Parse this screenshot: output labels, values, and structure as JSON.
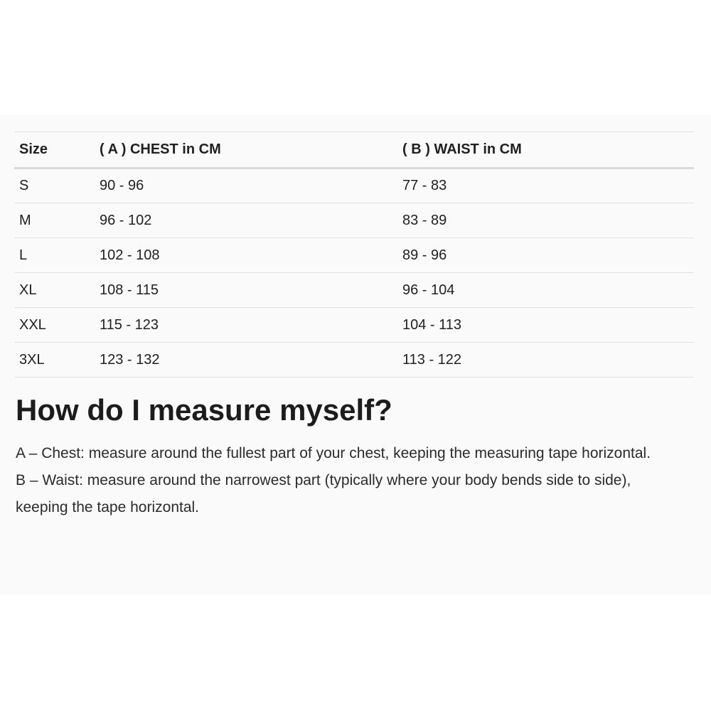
{
  "size_table": {
    "headers": [
      "Size",
      "( A ) CHEST in CM",
      "( B ) WAIST in CM"
    ],
    "rows": [
      {
        "size": "S",
        "chest": "90 - 96",
        "waist": "77 - 83"
      },
      {
        "size": "M",
        "chest": "96 - 102",
        "waist": "83 - 89"
      },
      {
        "size": "L",
        "chest": "102 - 108",
        "waist": "89 - 96"
      },
      {
        "size": "XL",
        "chest": "108 - 115",
        "waist": "96 - 104"
      },
      {
        "size": "XXL",
        "chest": "115 - 123",
        "waist": "104 - 113"
      },
      {
        "size": "3XL",
        "chest": "123 - 132",
        "waist": "113 - 122"
      }
    ]
  },
  "measure_guide": {
    "heading": "How do I measure myself?",
    "paragraphs": [
      "A – Chest: measure around the fullest part of your chest, keeping the measuring tape horizontal.",
      "B – Waist: measure around the narrowest part (typically where your body bends side to side), keeping the tape horizontal."
    ]
  },
  "colors": {
    "page_background": "#ffffff",
    "panel_background": "#fafafa",
    "text": "#212121",
    "row_divider": "#e1e1e1",
    "header_divider": "#d9d9d9"
  }
}
